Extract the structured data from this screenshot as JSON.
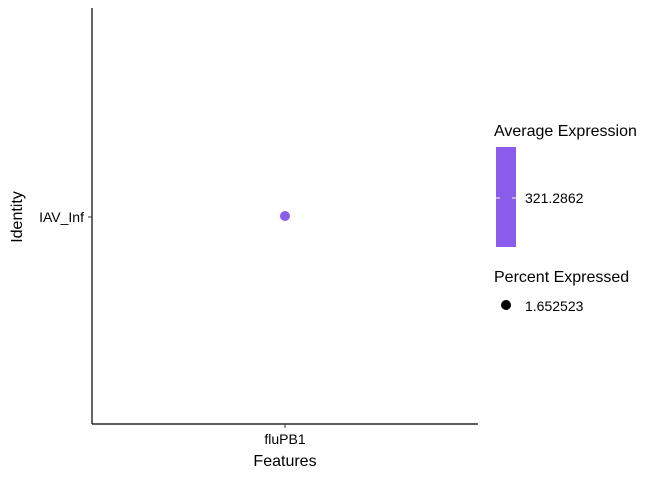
{
  "chart_data": {
    "type": "scatter",
    "title": "",
    "xlabel": "Features",
    "ylabel": "Identity",
    "categories_x": [
      "fluPB1"
    ],
    "categories_y": [
      "IAV_Inf"
    ],
    "points": [
      {
        "x": "fluPB1",
        "y": "IAV_Inf",
        "average_expression": 321.2862,
        "percent_expressed": 1.652523
      }
    ],
    "grid": false,
    "legend_position": "right",
    "legends": {
      "color": {
        "title": "Average Expression",
        "labels": [
          "321.2862"
        ],
        "color": "#8B5CEB"
      },
      "size": {
        "title": "Percent Expressed",
        "labels": [
          "1.652523"
        ],
        "color": "#000000"
      }
    }
  }
}
